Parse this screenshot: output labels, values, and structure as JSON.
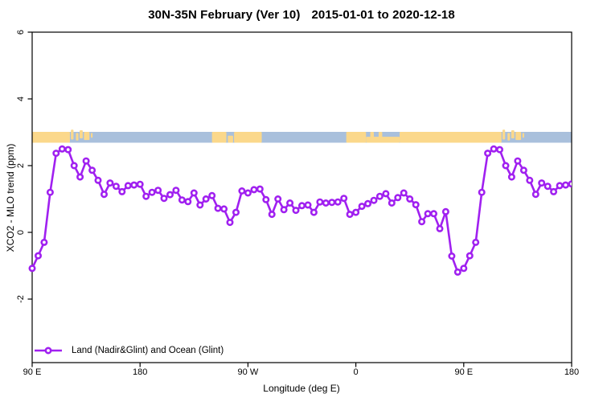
{
  "title": {
    "part1": "30N-35N February (Ver 10)",
    "part2": "2015-01-01 to 2020-12-18"
  },
  "axes": {
    "x_label": "Longitude (deg E)",
    "y_label": "XCO2 - MLO trend (ppm)"
  },
  "legend": {
    "label": "Land (Nadir&Glint) and Ocean (Glint)"
  },
  "colors": {
    "series": "#A020F0",
    "marker_fill": "#ffffff",
    "ocean": "#a9c0dc",
    "land": "#fbd88b",
    "axis": "#000000",
    "background": "#ffffff"
  },
  "chart_data": {
    "type": "line",
    "title": "30N-35N February (Ver 10)  2015-01-01 to 2020-12-18",
    "xlabel": "Longitude (deg E)",
    "ylabel": "XCO2 - MLO trend (ppm)",
    "x_start": 90,
    "x_step": 5,
    "x_range": [
      90,
      540
    ],
    "y_range": [
      -3.9,
      6.05
    ],
    "x_tick_positions": [
      90,
      180,
      270,
      360,
      450,
      540
    ],
    "x_tick_labels": [
      "90 E",
      "180",
      "90 W",
      "0",
      "90 E",
      "180"
    ],
    "y_tick_values": [
      -2,
      0,
      2,
      4,
      6
    ],
    "y_tick_labels": [
      "-2",
      "0",
      "2",
      "4",
      "6"
    ],
    "grid": false,
    "legend_position": "bottom-left",
    "series": [
      {
        "name": "Land (Nadir&Glint) and Ocean (Glint)",
        "values": [
          -1.08,
          -0.7,
          -0.3,
          1.2,
          2.37,
          2.5,
          2.48,
          2.0,
          1.66,
          2.14,
          1.86,
          1.56,
          1.14,
          1.48,
          1.38,
          1.22,
          1.4,
          1.42,
          1.44,
          1.08,
          1.2,
          1.26,
          1.02,
          1.13,
          1.26,
          0.97,
          0.92,
          1.18,
          0.82,
          1.0,
          1.1,
          0.72,
          0.7,
          0.3,
          0.6,
          1.24,
          1.18,
          1.28,
          1.3,
          0.98,
          0.54,
          1.0,
          0.68,
          0.88,
          0.66,
          0.8,
          0.82,
          0.6,
          0.91,
          0.88,
          0.9,
          0.91,
          1.02,
          0.54,
          0.6,
          0.78,
          0.86,
          0.96,
          1.08,
          1.16,
          0.88,
          1.04,
          1.18,
          1.0,
          0.83,
          0.32,
          0.56,
          0.56,
          0.11,
          0.62,
          -0.71,
          -1.19,
          -1.08,
          -0.7,
          -0.3,
          1.2,
          2.37,
          2.5,
          2.48,
          2.0,
          1.66,
          2.14,
          1.86,
          1.56,
          1.14,
          1.48,
          1.38,
          1.22,
          1.4,
          1.42,
          1.45
        ]
      }
    ],
    "map_strip": {
      "description": "land/ocean band for 30N-35N",
      "data_y_range": [
        2.69,
        3.01
      ],
      "land_segments": [
        {
          "from": 90,
          "to": 121.5,
          "top": 0,
          "bot": 1
        },
        {
          "from": 122.3,
          "to": 124.5,
          "top": -0.2,
          "bot": 0.7
        },
        {
          "from": 126.5,
          "to": 128.6,
          "top": 0.1,
          "bot": 0.8
        },
        {
          "from": 129.6,
          "to": 132.2,
          "top": -0.15,
          "bot": 0.6
        },
        {
          "from": 133.2,
          "to": 137.8,
          "top": 0,
          "bot": 0.75
        },
        {
          "from": 139.0,
          "to": 140.4,
          "top": 0.1,
          "bot": 0.55
        },
        {
          "from": 240,
          "to": 252,
          "top": 0,
          "bot": 1
        },
        {
          "from": 253.2,
          "to": 257.6,
          "top": 0.35,
          "bot": 1
        },
        {
          "from": 258.4,
          "to": 281.5,
          "top": 0,
          "bot": 1
        },
        {
          "from": 352,
          "to": 368.5,
          "top": 0,
          "bot": 1
        },
        {
          "from": 368.5,
          "to": 396.5,
          "top": 0.45,
          "bot": 1
        },
        {
          "from": 372,
          "to": 375,
          "top": 0,
          "bot": 1
        },
        {
          "from": 379,
          "to": 382,
          "top": 0,
          "bot": 1
        },
        {
          "from": 396.5,
          "to": 481.5,
          "top": 0,
          "bot": 1
        },
        {
          "from": 482.3,
          "to": 484.5,
          "top": -0.2,
          "bot": 0.7
        },
        {
          "from": 486.5,
          "to": 488.6,
          "top": 0.1,
          "bot": 0.8
        },
        {
          "from": 489.6,
          "to": 492.2,
          "top": -0.15,
          "bot": 0.6
        },
        {
          "from": 493.2,
          "to": 497.8,
          "top": 0,
          "bot": 0.75
        },
        {
          "from": 499.0,
          "to": 500.4,
          "top": 0.1,
          "bot": 0.55
        }
      ]
    }
  }
}
